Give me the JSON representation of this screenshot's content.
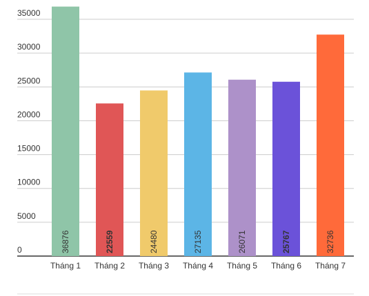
{
  "chart_data": {
    "type": "bar",
    "categories": [
      "Tháng 1",
      "Tháng 2",
      "Tháng 3",
      "Tháng 4",
      "Tháng 5",
      "Tháng 6",
      "Tháng 7"
    ],
    "values": [
      36876,
      22559,
      24480,
      27135,
      26071,
      25767,
      32736
    ],
    "colors": [
      "#8fc5a8",
      "#e05656",
      "#f0ca6b",
      "#5cb5e6",
      "#ad91c9",
      "#6b52d9",
      "#ff6a3a"
    ],
    "value_label_colors": [
      "#444444",
      "#ffffff",
      "#444444",
      "#444444",
      "#444444",
      "#ffffff",
      "#444444"
    ],
    "ylim": [
      0,
      35000
    ],
    "yticks": [
      0,
      5000,
      10000,
      15000,
      20000,
      25000,
      30000,
      35000
    ],
    "grid": true
  }
}
